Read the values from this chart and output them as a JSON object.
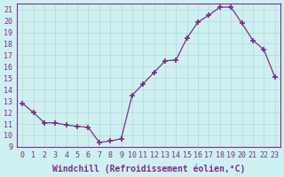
{
  "x": [
    0,
    1,
    2,
    3,
    4,
    5,
    6,
    7,
    8,
    9,
    10,
    11,
    12,
    13,
    14,
    15,
    16,
    17,
    18,
    19,
    20,
    21,
    22,
    23
  ],
  "y": [
    12.8,
    12.0,
    11.1,
    11.1,
    10.9,
    10.8,
    10.7,
    9.4,
    9.5,
    9.7,
    13.5,
    14.5,
    15.5,
    16.5,
    16.6,
    18.5,
    19.9,
    20.5,
    21.2,
    21.2,
    19.8,
    18.3,
    17.5,
    15.1
  ],
  "line_color": "#7B2D8B",
  "marker": "+",
  "marker_size": 4,
  "marker_lw": 1.2,
  "bg_color": "#cff0f0",
  "grid_color": "#b0d8d8",
  "xlabel": "Windchill (Refroidissement éolien,°C)",
  "ylim": [
    9,
    21.5
  ],
  "xlim_min": -0.5,
  "xlim_max": 23.5,
  "yticks": [
    9,
    10,
    11,
    12,
    13,
    14,
    15,
    16,
    17,
    18,
    19,
    20,
    21
  ],
  "xticks": [
    0,
    1,
    2,
    3,
    4,
    5,
    6,
    7,
    8,
    9,
    10,
    11,
    12,
    13,
    14,
    15,
    16,
    17,
    18,
    19,
    20,
    21,
    22,
    23
  ],
  "axis_color": "#7B2D8B",
  "tick_color": "#7B2D8B",
  "label_color": "#7B2D8B",
  "font_size_xlabel": 7,
  "font_size_ticks": 6
}
